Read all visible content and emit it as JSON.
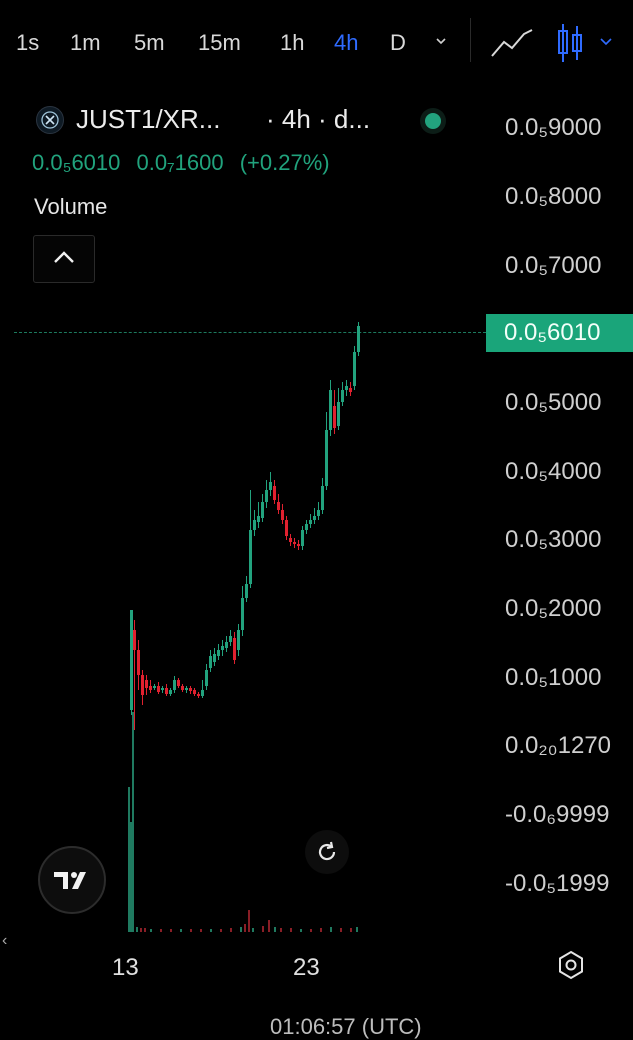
{
  "timeframes": [
    "1s",
    "1m",
    "5m",
    "15m",
    "1h",
    "4h",
    "D"
  ],
  "active_timeframe": "4h",
  "symbol": {
    "title": "JUST1/XR...",
    "meta": "· 4h · d...",
    "icon": "coin-icon"
  },
  "legend": {
    "last_price": "0.0₅6010",
    "change_abs": "0.0₇1600",
    "change_pct": "(+0.27%)",
    "volume_label": "Volume"
  },
  "price_axis": {
    "ticks": [
      "0.0₅9000",
      "0.0₅8000",
      "0.0₅7000",
      "0.0₅5000",
      "0.0₅4000",
      "0.0₅3000",
      "0.0₅2000",
      "0.0₅1000",
      "0.0₂₀1270",
      "-0.0₆9999",
      "-0.0₅1999"
    ],
    "current_tag": "0.0₅6010"
  },
  "x_axis": {
    "ticks": [
      "13",
      "23"
    ]
  },
  "colors": {
    "up": "#22a37e",
    "down": "#e0212f",
    "accent": "#2f6bff"
  },
  "bottom_partial": "01:06:57 (UTC)"
}
